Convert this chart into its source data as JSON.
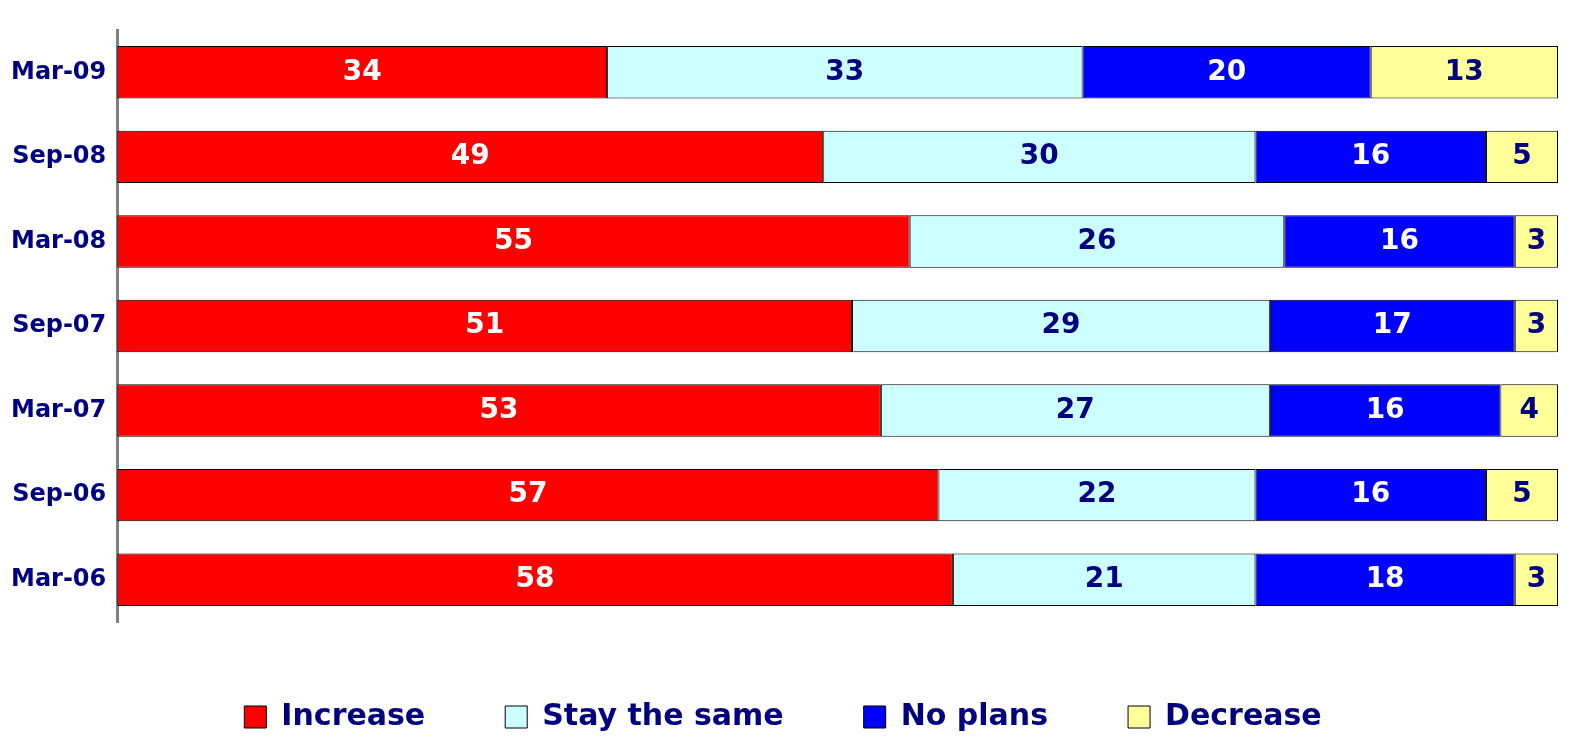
{
  "chart_data": {
    "type": "bar",
    "orientation": "horizontal",
    "stacked": true,
    "data_labels": true,
    "legend": "bottom",
    "categories": [
      "Mar-09",
      "Sep-08",
      "Mar-08",
      "Sep-07",
      "Mar-07",
      "Sep-06",
      "Mar-06"
    ],
    "series": [
      {
        "name": "Increase",
        "color": "#ff0000",
        "values": [
          34,
          49,
          55,
          51,
          53,
          57,
          58
        ]
      },
      {
        "name": "Stay the same",
        "color": "#ccffff",
        "values": [
          33,
          30,
          26,
          29,
          27,
          22,
          21
        ]
      },
      {
        "name": "No plans",
        "color": "#0000ff",
        "values": [
          20,
          16,
          16,
          17,
          16,
          16,
          18
        ]
      },
      {
        "name": "Decrease",
        "color": "#ffff99",
        "values": [
          13,
          5,
          3,
          3,
          4,
          5,
          3
        ]
      }
    ]
  }
}
